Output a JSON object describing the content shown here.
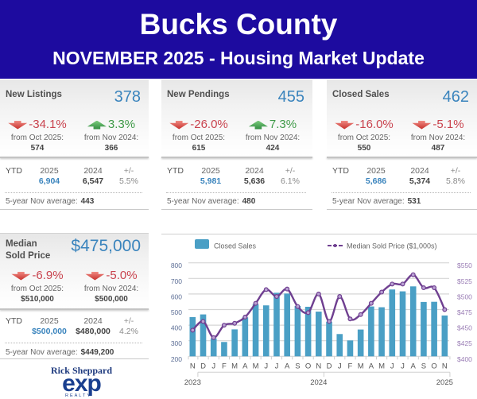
{
  "header": {
    "title": "Bucks County",
    "subtitle": "NOVEMBER 2025 - Housing Market Update"
  },
  "colors": {
    "header_bg": "#1d0b9f",
    "accent_blue": "#3a84bd",
    "down_red": "#c9434e",
    "up_green": "#3f9a48",
    "bar": "#4a9fc5",
    "line": "#6f3f90"
  },
  "cards": [
    {
      "title": "New Listings",
      "value": "378",
      "changes": [
        {
          "direction": "down",
          "icon": "arrow-down-icon",
          "pct": "-34.1%",
          "label": "from Oct 2025:",
          "value": "574"
        },
        {
          "direction": "up",
          "icon": "arrow-up-icon",
          "pct": "3.3%",
          "label": "from Nov 2024:",
          "value": "366"
        }
      ],
      "ytd": {
        "label": "YTD",
        "cols": [
          {
            "year": "2025",
            "value": "6,904"
          },
          {
            "year": "2024",
            "value": "6,547"
          },
          {
            "year": "+/-",
            "value": "5.5%"
          }
        ]
      },
      "avg": {
        "label": "5-year Nov average:",
        "value": "443"
      }
    },
    {
      "title": "New Pendings",
      "value": "455",
      "changes": [
        {
          "direction": "down",
          "icon": "arrow-down-icon",
          "pct": "-26.0%",
          "label": "from Oct 2025:",
          "value": "615"
        },
        {
          "direction": "up",
          "icon": "arrow-up-icon",
          "pct": "7.3%",
          "label": "from Nov 2024:",
          "value": "424"
        }
      ],
      "ytd": {
        "label": "YTD",
        "cols": [
          {
            "year": "2025",
            "value": "5,981"
          },
          {
            "year": "2024",
            "value": "5,636"
          },
          {
            "year": "+/-",
            "value": "6.1%"
          }
        ]
      },
      "avg": {
        "label": "5-year Nov average:",
        "value": "480"
      }
    },
    {
      "title": "Closed Sales",
      "value": "462",
      "changes": [
        {
          "direction": "down",
          "icon": "arrow-down-icon",
          "pct": "-16.0%",
          "label": "from Oct 2025:",
          "value": "550"
        },
        {
          "direction": "down",
          "icon": "arrow-down-icon",
          "pct": "-5.1%",
          "label": "from Nov 2024:",
          "value": "487"
        }
      ],
      "ytd": {
        "label": "YTD",
        "cols": [
          {
            "year": "2025",
            "value": "5,686"
          },
          {
            "year": "2024",
            "value": "5,374"
          },
          {
            "year": "+/-",
            "value": "5.8%"
          }
        ]
      },
      "avg": {
        "label": "5-year Nov average:",
        "value": "531"
      }
    },
    {
      "title": "Median Sold Price",
      "value": "$475,000",
      "changes": [
        {
          "direction": "down",
          "icon": "arrow-down-icon",
          "pct": "-6.9%",
          "label": "from Oct 2025:",
          "value": "$510,000"
        },
        {
          "direction": "down",
          "icon": "arrow-down-icon",
          "pct": "-5.0%",
          "label": "from Nov 2024:",
          "value": "$500,000"
        }
      ],
      "ytd": {
        "label": "YTD",
        "cols": [
          {
            "year": "2025",
            "value": "$500,000"
          },
          {
            "year": "2024",
            "value": "$480,000"
          },
          {
            "year": "+/-",
            "value": "4.2%"
          }
        ]
      },
      "avg": {
        "label": "5-year Nov average:",
        "value": "$449,200"
      }
    }
  ],
  "branding": {
    "agent_name": "Rick Sheppard",
    "logo_text": "exp",
    "logo_sub": "REALTY"
  },
  "chart_data": {
    "type": "bar",
    "title": "",
    "xlabel": "",
    "ylabel": "",
    "legend_position": "top",
    "grid": true,
    "categories": [
      "N",
      "D",
      "J",
      "F",
      "M",
      "A",
      "M",
      "J",
      "J",
      "A",
      "S",
      "O",
      "N",
      "D",
      "J",
      "F",
      "M",
      "A",
      "M",
      "J",
      "J",
      "A",
      "S",
      "O",
      "N"
    ],
    "year_labels": [
      {
        "label": "2023",
        "index": 0
      },
      {
        "label": "2024",
        "index": 12
      },
      {
        "label": "2025",
        "index": 24
      }
    ],
    "series": [
      {
        "name": "Closed Sales",
        "type": "bar",
        "axis": "left",
        "color": "#4a9fc5",
        "values": [
          452,
          469,
          315,
          292,
          373,
          450,
          535,
          527,
          608,
          603,
          523,
          518,
          487,
          422,
          343,
          302,
          372,
          520,
          515,
          629,
          617,
          649,
          549,
          550,
          462
        ]
      },
      {
        "name": "Median Sold Price ($1,000s)",
        "type": "line",
        "axis": "right",
        "color": "#6f3f90",
        "values": [
          442,
          456,
          430,
          450,
          453,
          463,
          485,
          507,
          496,
          508,
          480,
          470,
          500,
          456,
          496,
          460,
          467,
          485,
          503,
          516,
          516,
          531,
          510,
          510,
          475
        ]
      }
    ],
    "left_axis": {
      "range": [
        200,
        800
      ],
      "ticks": [
        200,
        300,
        400,
        500,
        600,
        700,
        800
      ],
      "labels": [
        "200",
        "300",
        "400",
        "500",
        "600",
        "700",
        "800"
      ]
    },
    "right_axis": {
      "range": [
        400,
        550
      ],
      "ticks": [
        400,
        425,
        450,
        475,
        500,
        525,
        550
      ],
      "labels": [
        "$400",
        "$425",
        "$450",
        "$475",
        "$500",
        "$525",
        "$550"
      ]
    },
    "ylim": [
      200,
      800
    ]
  }
}
